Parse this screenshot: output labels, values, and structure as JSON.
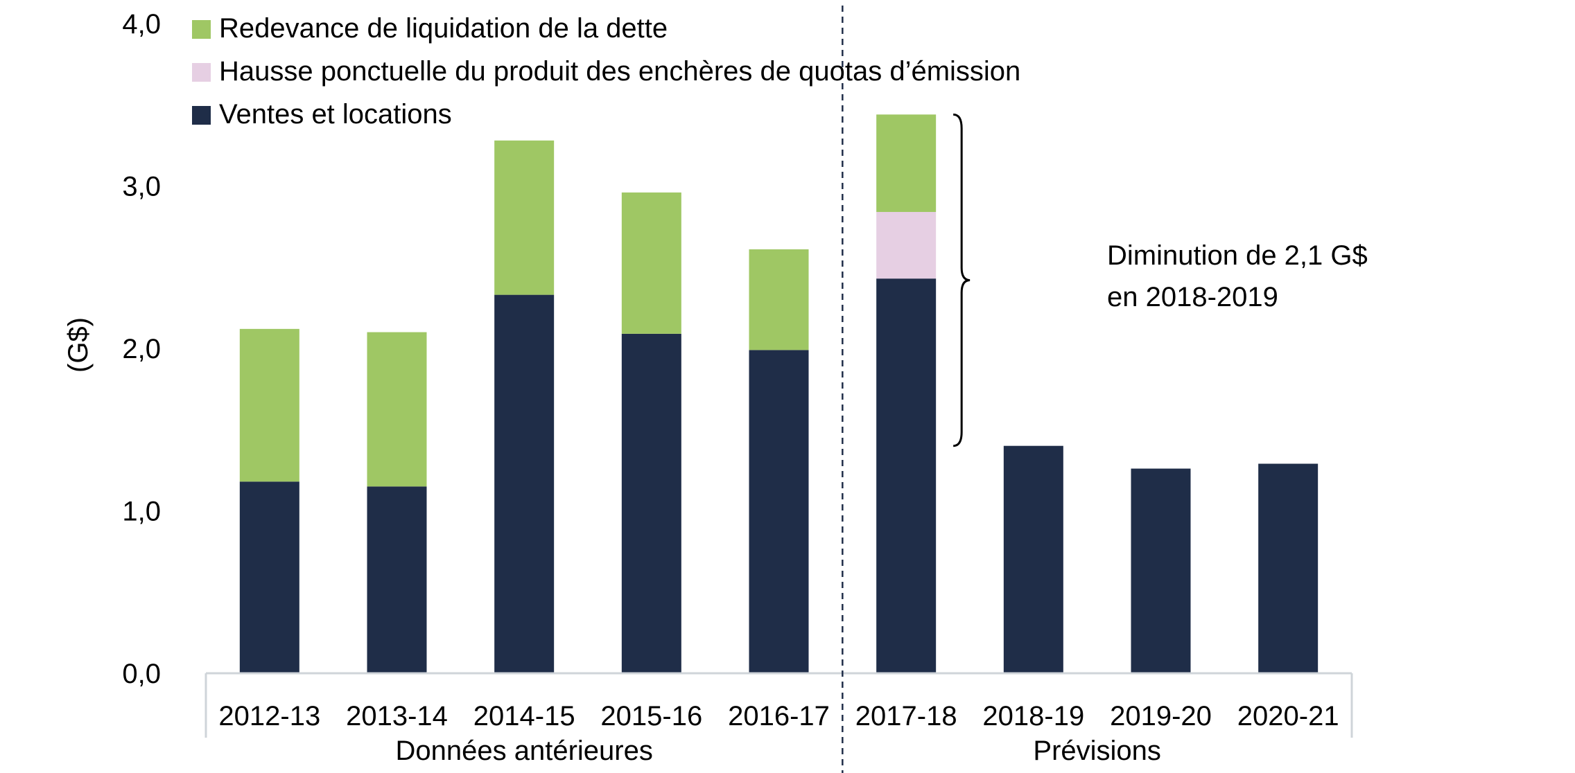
{
  "chart_data": {
    "type": "bar",
    "stacked": true,
    "categories": [
      "2012-13",
      "2013-14",
      "2014-15",
      "2015-16",
      "2016-17",
      "2017-18",
      "2018-19",
      "2019-20",
      "2020-21"
    ],
    "series": [
      {
        "name": "Ventes et locations",
        "color": "#1f2d48",
        "values": [
          1.18,
          1.15,
          2.33,
          2.09,
          1.99,
          2.43,
          1.4,
          1.26,
          1.29
        ]
      },
      {
        "name": "Hausse ponctuelle du produit des enchères de quotas d’émission",
        "color": "#e6cfe3",
        "values": [
          0,
          0,
          0,
          0,
          0,
          0.41,
          0,
          0,
          0
        ]
      },
      {
        "name": "Redevance de liquidation de la dette",
        "color": "#9fc764",
        "values": [
          0.94,
          0.95,
          0.95,
          0.87,
          0.62,
          0.6,
          0,
          0,
          0
        ]
      }
    ],
    "legend_order": [
      2,
      1,
      0
    ],
    "ylabel": "(G$)",
    "ylim": [
      0,
      4
    ],
    "yticks": [
      "0,0",
      "1,0",
      "2,0",
      "3,0",
      "4,0"
    ],
    "grid": false,
    "legend_position": "top-left",
    "groups": [
      {
        "label": "Données antérieures",
        "categories": [
          "2012-13",
          "2013-14",
          "2014-15",
          "2015-16",
          "2016-17"
        ]
      },
      {
        "label": "Prévisions",
        "categories": [
          "2017-18",
          "2018-19",
          "2019-20",
          "2020-21"
        ]
      }
    ],
    "annotation": {
      "lines": [
        "Diminution de 2,1 G$",
        "en 2018-2019"
      ],
      "category": "2017-18",
      "from_value": 1.4,
      "to_value": 3.44
    }
  }
}
